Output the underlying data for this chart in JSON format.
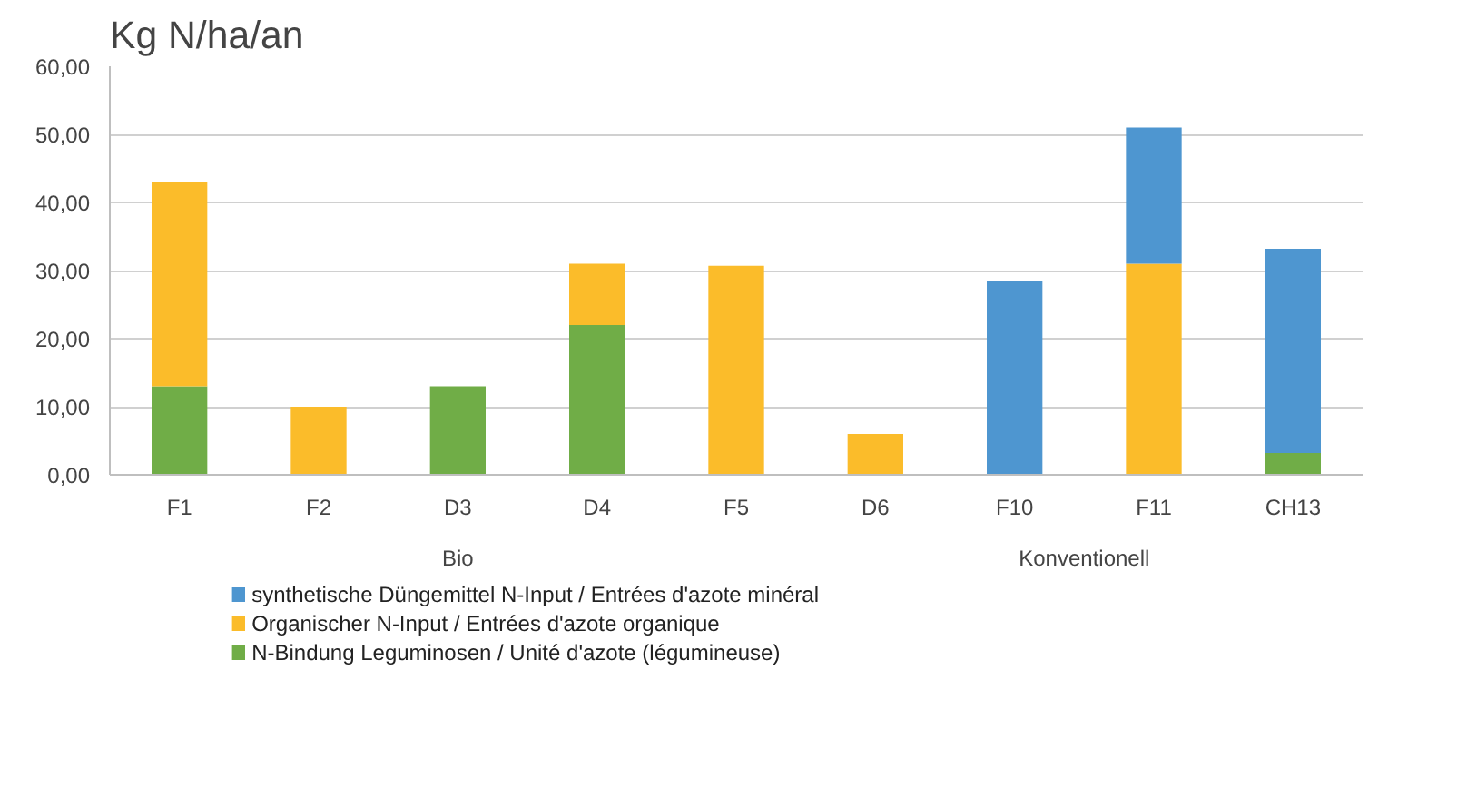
{
  "chart_data": {
    "type": "bar",
    "stacked": true,
    "ylabel": "Kg N/ha/an",
    "categories": [
      "F1",
      "F2",
      "D3",
      "D4",
      "F5",
      "D6",
      "F10",
      "F11",
      "CH13"
    ],
    "series": [
      {
        "name": "N-Bindung Leguminosen / Unité d'azote (légumineuse)",
        "color": "#70ad47",
        "values": [
          13,
          null,
          13,
          22,
          null,
          null,
          null,
          null,
          3.2
        ]
      },
      {
        "name": "Organischer N-Input / Entrées d'azote organique",
        "color": "#fbbc2a",
        "values": [
          30,
          10,
          null,
          9,
          30.7,
          6,
          null,
          31,
          null
        ]
      },
      {
        "name": "synthetische Düngemittel N-Input / Entrées d'azote minéral",
        "color": "#4e96d0",
        "values": [
          null,
          null,
          null,
          null,
          null,
          null,
          28.5,
          20,
          30
        ]
      }
    ],
    "ylim": [
      0,
      60
    ],
    "yticks": [
      {
        "value": 0,
        "label": "0,00"
      },
      {
        "value": 10,
        "label": "10,00"
      },
      {
        "value": 20,
        "label": "20,00"
      },
      {
        "value": 30,
        "label": "30,00"
      },
      {
        "value": 40,
        "label": "40,00"
      },
      {
        "value": 50,
        "label": "50,00"
      },
      {
        "value": 60,
        "label": "60,00"
      }
    ],
    "annotations": [
      "Bio",
      "Konventionell"
    ],
    "grid": "y",
    "legend": "bottom"
  }
}
